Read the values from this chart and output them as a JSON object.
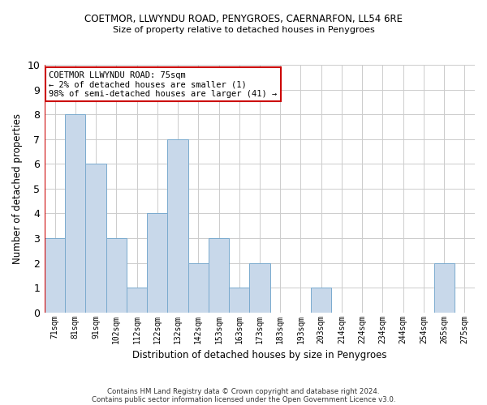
{
  "title": "COETMOR, LLWYNDU ROAD, PENYGROES, CAERNARFON, LL54 6RE",
  "subtitle": "Size of property relative to detached houses in Penygroes",
  "xlabel": "Distribution of detached houses by size in Penygroes",
  "ylabel": "Number of detached properties",
  "bar_color": "#c8d8ea",
  "bar_edge_color": "#7aaace",
  "categories": [
    "71sqm",
    "81sqm",
    "91sqm",
    "102sqm",
    "112sqm",
    "122sqm",
    "132sqm",
    "142sqm",
    "153sqm",
    "163sqm",
    "173sqm",
    "183sqm",
    "193sqm",
    "203sqm",
    "214sqm",
    "224sqm",
    "234sqm",
    "244sqm",
    "254sqm",
    "265sqm",
    "275sqm"
  ],
  "values": [
    3,
    8,
    6,
    3,
    1,
    4,
    7,
    2,
    3,
    1,
    2,
    0,
    0,
    1,
    0,
    0,
    0,
    0,
    0,
    2,
    0
  ],
  "ylim": [
    0,
    10
  ],
  "yticks": [
    0,
    1,
    2,
    3,
    4,
    5,
    6,
    7,
    8,
    9,
    10
  ],
  "annotation_title": "COETMOR LLWYNDU ROAD: 75sqm",
  "annotation_line1": "← 2% of detached houses are smaller (1)",
  "annotation_line2": "98% of semi-detached houses are larger (41) →",
  "annotation_box_color": "#ffffff",
  "annotation_box_edge": "#cc0000",
  "red_line_color": "#cc0000",
  "background_color": "#ffffff",
  "grid_color": "#cccccc",
  "footer1": "Contains HM Land Registry data © Crown copyright and database right 2024.",
  "footer2": "Contains public sector information licensed under the Open Government Licence v3.0."
}
